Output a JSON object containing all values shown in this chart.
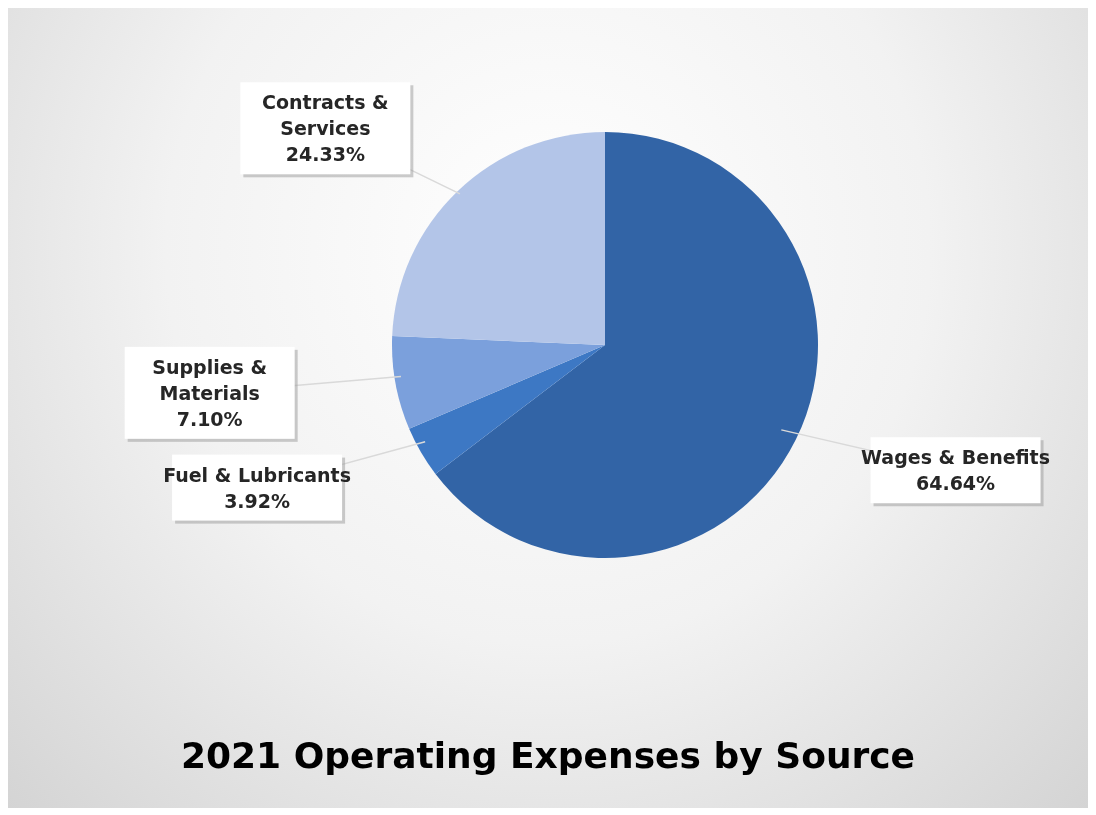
{
  "chart_data": {
    "type": "pie",
    "title": "2021 Operating Expenses by Source",
    "categories": [
      "Wages & Benefits",
      "Fuel & Lubricants",
      "Supplies & Materials",
      "Contracts & Services"
    ],
    "values": [
      64.64,
      3.92,
      7.1,
      24.33
    ],
    "value_labels": [
      "64.64%",
      "3.92%",
      "7.10%",
      "24.33%"
    ],
    "colors": [
      "#3264a6",
      "#3d78c4",
      "#7ba0dc",
      "#b3c5e8"
    ],
    "legend": false
  }
}
